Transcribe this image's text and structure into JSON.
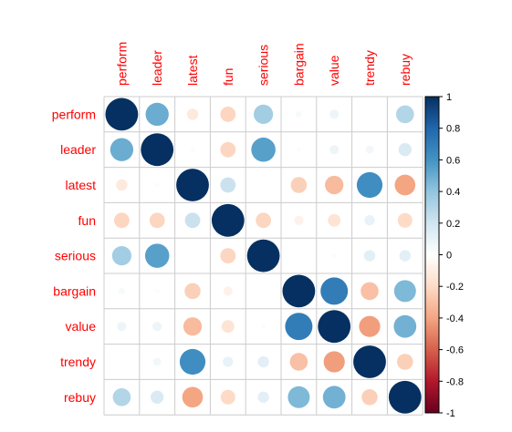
{
  "chart_data": {
    "type": "heatmap",
    "style": "correlation matrix, circle glyphs sized and colored by correlation",
    "variables": [
      "perform",
      "leader",
      "latest",
      "fun",
      "serious",
      "bargain",
      "value",
      "trendy",
      "rebuy"
    ],
    "matrix": [
      [
        1.0,
        0.5,
        -0.12,
        -0.22,
        0.35,
        0.04,
        0.08,
        0.0,
        0.3
      ],
      [
        0.5,
        1.0,
        0.02,
        -0.22,
        0.55,
        0.02,
        0.08,
        0.06,
        0.16
      ],
      [
        -0.12,
        0.02,
        1.0,
        0.22,
        0.0,
        -0.24,
        -0.32,
        0.62,
        -0.4
      ],
      [
        -0.22,
        -0.22,
        0.22,
        1.0,
        -0.22,
        -0.08,
        -0.15,
        0.1,
        -0.2
      ],
      [
        0.35,
        0.55,
        0.0,
        -0.22,
        1.0,
        0.0,
        0.02,
        0.12,
        0.12
      ],
      [
        0.04,
        0.02,
        -0.24,
        -0.08,
        0.0,
        1.0,
        0.7,
        -0.3,
        0.45
      ],
      [
        0.08,
        0.08,
        -0.32,
        -0.15,
        0.02,
        0.7,
        1.0,
        -0.42,
        0.48
      ],
      [
        0.0,
        0.06,
        0.62,
        0.1,
        0.12,
        -0.3,
        -0.42,
        1.0,
        -0.24
      ],
      [
        0.3,
        0.16,
        -0.4,
        -0.2,
        0.12,
        0.45,
        0.48,
        -0.24,
        1.0
      ]
    ],
    "colorbar": {
      "range": [
        -1,
        1
      ],
      "ticks": [
        "1",
        "0.8",
        "0.6",
        "0.4",
        "0.2",
        "0",
        "-0.2",
        "-0.4",
        "-0.6",
        "-0.8",
        "-1"
      ],
      "palette": [
        "#67001F",
        "#B2182B",
        "#D6604D",
        "#F4A582",
        "#FDDBC7",
        "#FFFFFF",
        "#D1E5F0",
        "#92C5DE",
        "#4393C3",
        "#2166AC",
        "#053061"
      ]
    },
    "label_color": "#FF0000",
    "grid": true,
    "legend": "right"
  }
}
